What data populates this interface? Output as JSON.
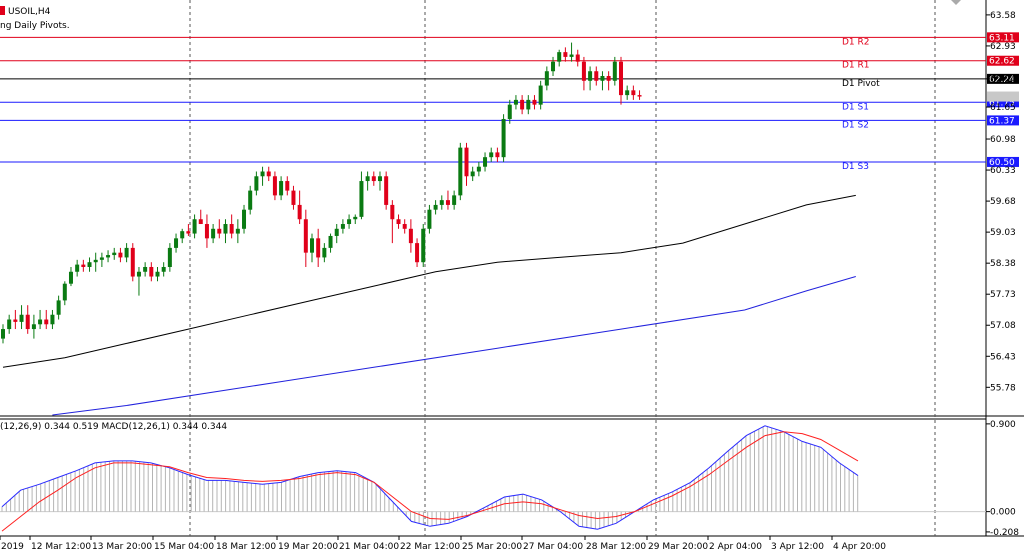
{
  "header": {
    "symbol": "USOIL,H4",
    "indicator": "ng Daily Pivots."
  },
  "macd_label": "(12,26,9) 0.344 0.519 MACD(12,26,1) 0.344 0.344",
  "colors": {
    "bull": "#0a7a12",
    "bear": "#e0001a",
    "pivotRes": "#e0001a",
    "pivotSup": "#1a1aff",
    "pivot": "#000000",
    "ma1": "#000000",
    "ma2": "#2222dd",
    "macdMain": "#2a2aff",
    "macdSignal": "#ff2020",
    "hist": "#b4b4b4"
  },
  "chart_data": [
    {
      "type": "candlestick",
      "title": "USOIL,H4",
      "ylim": [
        55.2,
        63.85
      ],
      "y_ticks": [
        "63.58",
        "62.93",
        "62.24",
        "61.65",
        "60.98",
        "60.33",
        "59.68",
        "59.03",
        "58.38",
        "57.73",
        "57.08",
        "56.43",
        "55.78"
      ],
      "x_ticks": [
        "2019",
        "12 Mar 12:00",
        "13 Mar 20:00",
        "15 Mar 04:00",
        "18 Mar 12:00",
        "19 Mar 20:00",
        "21 Mar 04:00",
        "22 Mar 12:00",
        "25 Mar 20:00",
        "27 Mar 04:00",
        "28 Mar 12:00",
        "29 Mar 20:00",
        "2 Apr 04:00",
        "3 Apr 12:00",
        "4 Apr 20:00"
      ],
      "pivots": [
        {
          "label": "D1 R2",
          "value": 63.11,
          "tag": "63.11"
        },
        {
          "label": "D1 R1",
          "value": 62.62,
          "tag": "62.62"
        },
        {
          "label": "D1 Pivot",
          "value": 62.24,
          "tag": "62.24"
        },
        {
          "label": "D1 S1",
          "value": 61.75,
          "tag": "61.75"
        },
        {
          "label": "D1 S2",
          "value": 61.37,
          "tag": "61.37"
        },
        {
          "label": "D1 S3",
          "value": 60.5,
          "tag": "60.50"
        }
      ],
      "current_price": 61.87,
      "candles": [
        {
          "o": 56.8,
          "h": 57.1,
          "l": 56.7,
          "c": 57.0
        },
        {
          "o": 57.0,
          "h": 57.3,
          "l": 56.9,
          "c": 57.2
        },
        {
          "o": 57.2,
          "h": 57.4,
          "l": 57.0,
          "c": 57.15
        },
        {
          "o": 57.15,
          "h": 57.5,
          "l": 57.0,
          "c": 57.3
        },
        {
          "o": 57.3,
          "h": 57.5,
          "l": 56.9,
          "c": 57.0
        },
        {
          "o": 57.0,
          "h": 57.3,
          "l": 56.8,
          "c": 57.1
        },
        {
          "o": 57.1,
          "h": 57.4,
          "l": 57.0,
          "c": 57.2
        },
        {
          "o": 57.2,
          "h": 57.4,
          "l": 57.0,
          "c": 57.1
        },
        {
          "o": 57.1,
          "h": 57.4,
          "l": 57.0,
          "c": 57.3
        },
        {
          "o": 57.3,
          "h": 57.7,
          "l": 57.2,
          "c": 57.6
        },
        {
          "o": 57.6,
          "h": 58.0,
          "l": 57.5,
          "c": 57.95
        },
        {
          "o": 57.95,
          "h": 58.3,
          "l": 57.9,
          "c": 58.2
        },
        {
          "o": 58.2,
          "h": 58.45,
          "l": 58.1,
          "c": 58.35
        },
        {
          "o": 58.35,
          "h": 58.45,
          "l": 58.2,
          "c": 58.3
        },
        {
          "o": 58.3,
          "h": 58.5,
          "l": 58.2,
          "c": 58.4
        },
        {
          "o": 58.4,
          "h": 58.6,
          "l": 58.2,
          "c": 58.45
        },
        {
          "o": 58.45,
          "h": 58.6,
          "l": 58.3,
          "c": 58.5
        },
        {
          "o": 58.5,
          "h": 58.65,
          "l": 58.4,
          "c": 58.55
        },
        {
          "o": 58.55,
          "h": 58.7,
          "l": 58.45,
          "c": 58.6
        },
        {
          "o": 58.6,
          "h": 58.7,
          "l": 58.4,
          "c": 58.5
        },
        {
          "o": 58.5,
          "h": 58.8,
          "l": 58.4,
          "c": 58.7
        },
        {
          "o": 58.7,
          "h": 58.8,
          "l": 58.0,
          "c": 58.1
        },
        {
          "o": 58.1,
          "h": 58.3,
          "l": 57.7,
          "c": 58.2
        },
        {
          "o": 58.2,
          "h": 58.4,
          "l": 58.1,
          "c": 58.3
        },
        {
          "o": 58.3,
          "h": 58.4,
          "l": 58.0,
          "c": 58.1
        },
        {
          "o": 58.1,
          "h": 58.3,
          "l": 58.0,
          "c": 58.2
        },
        {
          "o": 58.2,
          "h": 58.4,
          "l": 58.1,
          "c": 58.3
        },
        {
          "o": 58.3,
          "h": 58.8,
          "l": 58.2,
          "c": 58.7
        },
        {
          "o": 58.7,
          "h": 59.0,
          "l": 58.6,
          "c": 58.9
        },
        {
          "o": 58.9,
          "h": 59.1,
          "l": 58.8,
          "c": 59.05
        },
        {
          "o": 59.05,
          "h": 59.2,
          "l": 58.95,
          "c": 59.0
        },
        {
          "o": 59.0,
          "h": 59.4,
          "l": 58.9,
          "c": 59.3
        },
        {
          "o": 59.3,
          "h": 59.5,
          "l": 59.2,
          "c": 59.2
        },
        {
          "o": 59.2,
          "h": 59.4,
          "l": 58.7,
          "c": 58.9
        },
        {
          "o": 58.9,
          "h": 59.2,
          "l": 58.8,
          "c": 59.1
        },
        {
          "o": 59.1,
          "h": 59.3,
          "l": 58.9,
          "c": 59.0
        },
        {
          "o": 59.0,
          "h": 59.3,
          "l": 58.8,
          "c": 59.2
        },
        {
          "o": 59.2,
          "h": 59.4,
          "l": 58.9,
          "c": 59.0
        },
        {
          "o": 59.0,
          "h": 59.3,
          "l": 58.8,
          "c": 59.1
        },
        {
          "o": 59.1,
          "h": 59.6,
          "l": 59.0,
          "c": 59.5
        },
        {
          "o": 59.5,
          "h": 60.0,
          "l": 59.4,
          "c": 59.9
        },
        {
          "o": 59.9,
          "h": 60.3,
          "l": 59.8,
          "c": 60.2
        },
        {
          "o": 60.2,
          "h": 60.4,
          "l": 60.0,
          "c": 60.3
        },
        {
          "o": 60.3,
          "h": 60.4,
          "l": 60.1,
          "c": 60.2
        },
        {
          "o": 60.2,
          "h": 60.3,
          "l": 59.7,
          "c": 59.8
        },
        {
          "o": 59.8,
          "h": 60.2,
          "l": 59.7,
          "c": 60.1
        },
        {
          "o": 60.1,
          "h": 60.2,
          "l": 59.8,
          "c": 59.9
        },
        {
          "o": 59.9,
          "h": 60.0,
          "l": 59.5,
          "c": 59.6
        },
        {
          "o": 59.6,
          "h": 59.9,
          "l": 59.2,
          "c": 59.3
        },
        {
          "o": 59.3,
          "h": 59.5,
          "l": 58.3,
          "c": 58.6
        },
        {
          "o": 58.6,
          "h": 59.0,
          "l": 58.4,
          "c": 58.9
        },
        {
          "o": 58.9,
          "h": 59.1,
          "l": 58.3,
          "c": 58.5
        },
        {
          "o": 58.5,
          "h": 58.8,
          "l": 58.4,
          "c": 58.7
        },
        {
          "o": 58.7,
          "h": 59.0,
          "l": 58.6,
          "c": 58.95
        },
        {
          "o": 58.95,
          "h": 59.2,
          "l": 58.8,
          "c": 59.1
        },
        {
          "o": 59.1,
          "h": 59.3,
          "l": 59.0,
          "c": 59.2
        },
        {
          "o": 59.2,
          "h": 59.4,
          "l": 59.1,
          "c": 59.3
        },
        {
          "o": 59.3,
          "h": 59.4,
          "l": 59.2,
          "c": 59.35
        },
        {
          "o": 59.35,
          "h": 60.3,
          "l": 59.3,
          "c": 60.1
        },
        {
          "o": 60.1,
          "h": 60.3,
          "l": 59.9,
          "c": 60.2
        },
        {
          "o": 60.2,
          "h": 60.3,
          "l": 60.0,
          "c": 60.1
        },
        {
          "o": 60.1,
          "h": 60.3,
          "l": 59.9,
          "c": 60.2
        },
        {
          "o": 60.2,
          "h": 60.3,
          "l": 59.5,
          "c": 59.6
        },
        {
          "o": 59.6,
          "h": 59.7,
          "l": 58.8,
          "c": 59.3
        },
        {
          "o": 59.3,
          "h": 59.4,
          "l": 59.1,
          "c": 59.2
        },
        {
          "o": 59.2,
          "h": 59.3,
          "l": 59.0,
          "c": 59.1
        },
        {
          "o": 59.1,
          "h": 59.3,
          "l": 58.6,
          "c": 58.8
        },
        {
          "o": 58.8,
          "h": 58.9,
          "l": 58.3,
          "c": 58.4
        },
        {
          "o": 58.4,
          "h": 59.2,
          "l": 58.3,
          "c": 59.1
        },
        {
          "o": 59.1,
          "h": 59.6,
          "l": 59.0,
          "c": 59.5
        },
        {
          "o": 59.5,
          "h": 59.7,
          "l": 59.4,
          "c": 59.6
        },
        {
          "o": 59.6,
          "h": 59.8,
          "l": 59.5,
          "c": 59.7
        },
        {
          "o": 59.7,
          "h": 59.9,
          "l": 59.5,
          "c": 59.6
        },
        {
          "o": 59.6,
          "h": 59.9,
          "l": 59.5,
          "c": 59.8
        },
        {
          "o": 59.8,
          "h": 60.9,
          "l": 59.7,
          "c": 60.8
        },
        {
          "o": 60.8,
          "h": 60.9,
          "l": 60.0,
          "c": 60.2
        },
        {
          "o": 60.2,
          "h": 60.4,
          "l": 60.1,
          "c": 60.3
        },
        {
          "o": 60.3,
          "h": 60.5,
          "l": 60.2,
          "c": 60.4
        },
        {
          "o": 60.4,
          "h": 60.7,
          "l": 60.3,
          "c": 60.6
        },
        {
          "o": 60.6,
          "h": 60.8,
          "l": 60.5,
          "c": 60.7
        },
        {
          "o": 60.7,
          "h": 60.8,
          "l": 60.5,
          "c": 60.6
        },
        {
          "o": 60.6,
          "h": 61.5,
          "l": 60.5,
          "c": 61.4
        },
        {
          "o": 61.4,
          "h": 61.8,
          "l": 61.3,
          "c": 61.7
        },
        {
          "o": 61.7,
          "h": 61.9,
          "l": 61.6,
          "c": 61.8
        },
        {
          "o": 61.8,
          "h": 61.9,
          "l": 61.5,
          "c": 61.6
        },
        {
          "o": 61.6,
          "h": 61.9,
          "l": 61.5,
          "c": 61.8
        },
        {
          "o": 61.8,
          "h": 61.9,
          "l": 61.6,
          "c": 61.7
        },
        {
          "o": 61.7,
          "h": 62.2,
          "l": 61.6,
          "c": 62.1
        },
        {
          "o": 62.1,
          "h": 62.5,
          "l": 62.0,
          "c": 62.4
        },
        {
          "o": 62.4,
          "h": 62.7,
          "l": 62.3,
          "c": 62.6
        },
        {
          "o": 62.6,
          "h": 62.85,
          "l": 62.5,
          "c": 62.8
        },
        {
          "o": 62.8,
          "h": 62.9,
          "l": 62.6,
          "c": 62.7
        },
        {
          "o": 62.7,
          "h": 63.0,
          "l": 62.6,
          "c": 62.75
        },
        {
          "o": 62.75,
          "h": 62.85,
          "l": 62.5,
          "c": 62.6
        },
        {
          "o": 62.6,
          "h": 62.7,
          "l": 62.0,
          "c": 62.2
        },
        {
          "o": 62.2,
          "h": 62.5,
          "l": 62.0,
          "c": 62.4
        },
        {
          "o": 62.4,
          "h": 62.5,
          "l": 62.1,
          "c": 62.2
        },
        {
          "o": 62.2,
          "h": 62.4,
          "l": 62.0,
          "c": 62.3
        },
        {
          "o": 62.3,
          "h": 62.4,
          "l": 62.0,
          "c": 62.2
        },
        {
          "o": 62.2,
          "h": 62.7,
          "l": 62.1,
          "c": 62.6
        },
        {
          "o": 62.6,
          "h": 62.7,
          "l": 61.7,
          "c": 61.9
        },
        {
          "o": 61.9,
          "h": 62.1,
          "l": 61.8,
          "c": 62.0
        },
        {
          "o": 62.0,
          "h": 62.1,
          "l": 61.8,
          "c": 61.9
        },
        {
          "o": 61.9,
          "h": 62.0,
          "l": 61.8,
          "c": 61.87
        }
      ],
      "ma1": [
        [
          0,
          56.2
        ],
        [
          10,
          56.4
        ],
        [
          20,
          56.7
        ],
        [
          30,
          57.0
        ],
        [
          40,
          57.3
        ],
        [
          50,
          57.6
        ],
        [
          60,
          57.9
        ],
        [
          70,
          58.2
        ],
        [
          80,
          58.4
        ],
        [
          90,
          58.5
        ],
        [
          100,
          58.6
        ],
        [
          110,
          58.8
        ],
        [
          120,
          59.2
        ],
        [
          130,
          59.6
        ],
        [
          138,
          59.8
        ]
      ],
      "ma2": [
        [
          8,
          55.2
        ],
        [
          20,
          55.4
        ],
        [
          40,
          55.8
        ],
        [
          60,
          56.2
        ],
        [
          80,
          56.6
        ],
        [
          100,
          57.0
        ],
        [
          120,
          57.4
        ],
        [
          130,
          57.8
        ],
        [
          138,
          58.1
        ]
      ]
    },
    {
      "type": "line",
      "title": "MACD(12,26,9)",
      "ylim": [
        -0.25,
        0.95
      ],
      "y_ticks": [
        "0.900",
        "0.000",
        "-0.208"
      ],
      "series": [
        {
          "name": "main",
          "values": [
            0.05,
            0.22,
            0.28,
            0.35,
            0.42,
            0.5,
            0.52,
            0.52,
            0.5,
            0.45,
            0.38,
            0.32,
            0.32,
            0.3,
            0.28,
            0.3,
            0.36,
            0.4,
            0.42,
            0.4,
            0.3,
            0.1,
            -0.1,
            -0.15,
            -0.12,
            -0.05,
            0.05,
            0.15,
            0.18,
            0.12,
            0.0,
            -0.15,
            -0.18,
            -0.12,
            0.0,
            0.12,
            0.2,
            0.3,
            0.45,
            0.62,
            0.78,
            0.88,
            0.82,
            0.72,
            0.66,
            0.5,
            0.37
          ]
        },
        {
          "name": "signal",
          "values": [
            -0.2,
            -0.05,
            0.1,
            0.22,
            0.35,
            0.45,
            0.5,
            0.5,
            0.48,
            0.46,
            0.4,
            0.35,
            0.34,
            0.32,
            0.31,
            0.32,
            0.34,
            0.38,
            0.4,
            0.38,
            0.3,
            0.15,
            0.0,
            -0.07,
            -0.08,
            -0.04,
            0.02,
            0.08,
            0.1,
            0.08,
            0.02,
            -0.04,
            -0.07,
            -0.05,
            0.0,
            0.08,
            0.16,
            0.26,
            0.38,
            0.52,
            0.66,
            0.78,
            0.82,
            0.8,
            0.74,
            0.63,
            0.52
          ]
        }
      ]
    }
  ]
}
